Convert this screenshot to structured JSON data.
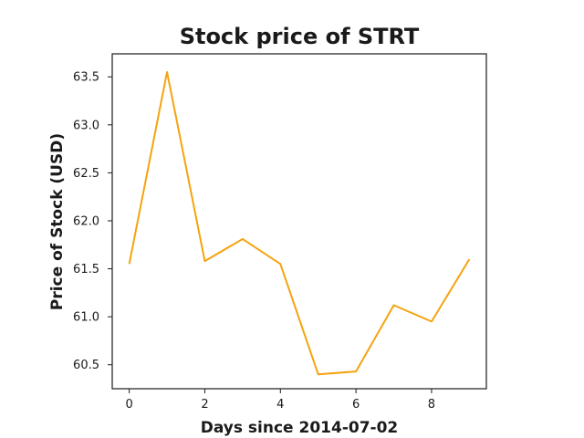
{
  "chart_data": {
    "type": "line",
    "title": "Stock price of STRT",
    "xlabel": "Days since 2014-07-02",
    "ylabel": "Price of Stock (USD)",
    "x": [
      0,
      1,
      2,
      3,
      4,
      5,
      6,
      7,
      8,
      9
    ],
    "series": [
      {
        "values": [
          61.55,
          63.55,
          61.58,
          61.81,
          61.55,
          60.4,
          60.43,
          61.12,
          60.95,
          61.6
        ],
        "color": "#f5a30f"
      }
    ],
    "xlim": [
      -0.45,
      9.45
    ],
    "ylim": [
      60.25,
      63.74
    ],
    "xticks": [
      0,
      2,
      4,
      6,
      8
    ],
    "xtick_labels": [
      "0",
      "2",
      "4",
      "6",
      "8"
    ],
    "yticks": [
      60.5,
      61.0,
      61.5,
      62.0,
      62.5,
      63.0,
      63.5
    ],
    "ytick_labels": [
      "60.5",
      "61.0",
      "61.5",
      "62.0",
      "62.5",
      "63.0",
      "63.5"
    ],
    "grid": false,
    "legend": "none"
  }
}
